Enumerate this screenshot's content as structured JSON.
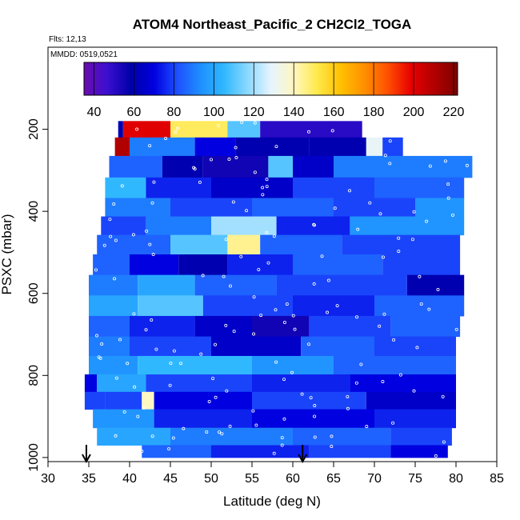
{
  "chart_data": {
    "type": "heatmap",
    "title": "ATOM4 Northeast_Pacific_2 CH2Cl2_TOGA",
    "annotations": [
      "Flts: 12,13",
      "MMDD: 0519,0521"
    ],
    "xlabel": "Latitude (deg N)",
    "ylabel": "PSXC (mbar)",
    "xlim": [
      30,
      85
    ],
    "ylim": [
      1010,
      0
    ],
    "xticks": [
      30,
      35,
      40,
      45,
      50,
      55,
      60,
      65,
      70,
      75,
      80,
      85
    ],
    "yticks": [
      200,
      400,
      600,
      800,
      1000
    ],
    "colorbar": {
      "range": [
        35,
        222
      ],
      "ticks": [
        40,
        60,
        80,
        100,
        120,
        140,
        160,
        180,
        200,
        220
      ],
      "colors": [
        "#6a0dad",
        "#3b0fd0",
        "#0000a8",
        "#0000e0",
        "#1e50ff",
        "#1e90ff",
        "#30b8ff",
        "#8ad8ff",
        "#e6f4ff",
        "#fff7c0",
        "#ffe94a",
        "#ffc000",
        "#ff9000",
        "#ff5000",
        "#e80000",
        "#b00000",
        "#800000"
      ]
    },
    "arrows": [
      34.7,
      61.2
    ],
    "layers": [
      {
        "p": 200,
        "x0": 38.6,
        "x1": 68.5,
        "segs": [
          [
            38.6,
            39.2,
            60
          ],
          [
            39.2,
            45,
            200
          ],
          [
            45,
            52,
            150
          ],
          [
            52,
            56,
            110
          ],
          [
            56,
            68.5,
            50
          ]
        ]
      },
      {
        "p": 240,
        "x0": 38.2,
        "x1": 73.5,
        "segs": [
          [
            38.2,
            40,
            210
          ],
          [
            40,
            48,
            90
          ],
          [
            48,
            53,
            70
          ],
          [
            53,
            62,
            60
          ],
          [
            62,
            69,
            60
          ],
          [
            69,
            71,
            130
          ],
          [
            71,
            73.5,
            80
          ]
        ]
      },
      {
        "p": 290,
        "x0": 37.5,
        "x1": 82,
        "segs": [
          [
            37.5,
            44,
            85
          ],
          [
            44,
            49,
            60
          ],
          [
            49,
            57,
            55
          ],
          [
            57,
            60,
            110
          ],
          [
            60,
            65,
            65
          ],
          [
            65,
            82,
            90
          ]
        ]
      },
      {
        "p": 345,
        "x0": 37,
        "x1": 81,
        "segs": [
          [
            37,
            42,
            105
          ],
          [
            42,
            50,
            75
          ],
          [
            50,
            60,
            65
          ],
          [
            60,
            70,
            80
          ],
          [
            70,
            81,
            85
          ]
        ]
      },
      {
        "p": 390,
        "x0": 37,
        "x1": 81,
        "segs": [
          [
            37,
            45,
            90
          ],
          [
            45,
            55,
            80
          ],
          [
            55,
            65,
            85
          ],
          [
            65,
            75,
            80
          ],
          [
            75,
            81,
            95
          ]
        ]
      },
      {
        "p": 435,
        "x0": 36.5,
        "x1": 81,
        "segs": [
          [
            36.5,
            42,
            80
          ],
          [
            42,
            50,
            90
          ],
          [
            50,
            58,
            120
          ],
          [
            58,
            67,
            75
          ],
          [
            67,
            81,
            95
          ]
        ]
      },
      {
        "p": 480,
        "x0": 36,
        "x1": 80.5,
        "segs": [
          [
            36,
            45,
            85
          ],
          [
            45,
            52,
            110
          ],
          [
            52,
            56,
            145
          ],
          [
            56,
            66,
            85
          ],
          [
            66,
            80.5,
            80
          ]
        ]
      },
      {
        "p": 530,
        "x0": 35.5,
        "x1": 80.5,
        "segs": [
          [
            35.5,
            40,
            85
          ],
          [
            40,
            46,
            70
          ],
          [
            46,
            52,
            60
          ],
          [
            52,
            60,
            75
          ],
          [
            60,
            71,
            85
          ],
          [
            71,
            80.5,
            80
          ]
        ]
      },
      {
        "p": 580,
        "x0": 35,
        "x1": 81,
        "segs": [
          [
            35,
            41,
            90
          ],
          [
            41,
            48,
            100
          ],
          [
            48,
            58,
            85
          ],
          [
            58,
            65,
            80
          ],
          [
            65,
            74,
            80
          ],
          [
            74,
            81,
            60
          ]
        ]
      },
      {
        "p": 630,
        "x0": 35,
        "x1": 81,
        "segs": [
          [
            35,
            41,
            100
          ],
          [
            41,
            49,
            110
          ],
          [
            49,
            60,
            80
          ],
          [
            60,
            70,
            75
          ],
          [
            70,
            81,
            85
          ]
        ]
      },
      {
        "p": 680,
        "x0": 35,
        "x1": 80.5,
        "segs": [
          [
            35,
            40,
            85
          ],
          [
            40,
            48,
            75
          ],
          [
            48,
            55,
            65
          ],
          [
            55,
            62,
            55
          ],
          [
            62,
            72,
            80
          ],
          [
            72,
            80.5,
            85
          ]
        ]
      },
      {
        "p": 730,
        "x0": 35,
        "x1": 80,
        "segs": [
          [
            35,
            40,
            90
          ],
          [
            40,
            50,
            80
          ],
          [
            50,
            61,
            65
          ],
          [
            61,
            70,
            85
          ],
          [
            70,
            80,
            80
          ]
        ]
      },
      {
        "p": 775,
        "x0": 35,
        "x1": 80,
        "segs": [
          [
            35,
            41,
            95
          ],
          [
            41,
            55,
            105
          ],
          [
            55,
            65,
            95
          ],
          [
            65,
            80,
            85
          ]
        ]
      },
      {
        "p": 820,
        "x0": 34.5,
        "x1": 80,
        "segs": [
          [
            34.5,
            36,
            70
          ],
          [
            36,
            42,
            100
          ],
          [
            42,
            55,
            80
          ],
          [
            55,
            67,
            75
          ],
          [
            67,
            80,
            70
          ]
        ]
      },
      {
        "p": 860,
        "x0": 34.5,
        "x1": 80,
        "segs": [
          [
            34.5,
            37,
            80
          ],
          [
            37,
            41.5,
            80
          ],
          [
            41.5,
            43,
            140
          ],
          [
            43,
            55,
            70
          ],
          [
            55,
            69,
            80
          ],
          [
            69,
            80,
            65
          ]
        ]
      },
      {
        "p": 905,
        "x0": 35.5,
        "x1": 80,
        "segs": [
          [
            35.5,
            43,
            95
          ],
          [
            43,
            55,
            75
          ],
          [
            55,
            70,
            70
          ],
          [
            70,
            80,
            75
          ]
        ]
      },
      {
        "p": 950,
        "x0": 36,
        "x1": 79.5,
        "segs": [
          [
            36,
            45,
            100
          ],
          [
            45,
            60,
            90
          ],
          [
            60,
            72,
            85
          ],
          [
            72,
            79.5,
            80
          ]
        ]
      },
      {
        "p": 990,
        "x0": 41.5,
        "x1": 79,
        "segs": [
          [
            41.5,
            50,
            85
          ],
          [
            50,
            62,
            75
          ],
          [
            62,
            72,
            80
          ],
          [
            72,
            79,
            70
          ]
        ]
      }
    ]
  }
}
